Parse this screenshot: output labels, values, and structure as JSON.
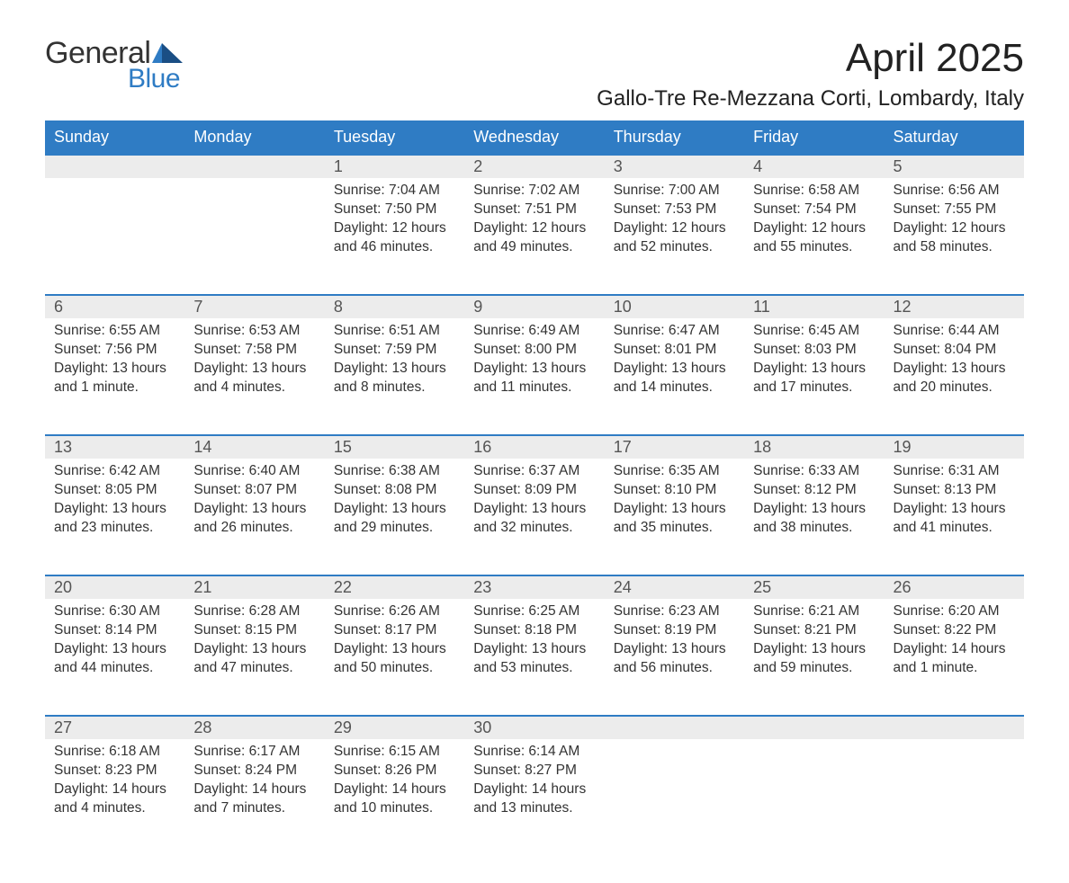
{
  "logo": {
    "general": "General",
    "blue": "Blue"
  },
  "title": "April 2025",
  "location": "Gallo-Tre Re-Mezzana Corti, Lombardy, Italy",
  "colors": {
    "header_bg": "#2f7cc4",
    "header_fg": "#ffffff",
    "daynum_bg": "#ececec",
    "border_top": "#2f7cc4",
    "text": "#333333",
    "logo_blue": "#2f7cc4"
  },
  "days_of_week": [
    "Sunday",
    "Monday",
    "Tuesday",
    "Wednesday",
    "Thursday",
    "Friday",
    "Saturday"
  ],
  "weeks": [
    [
      null,
      null,
      {
        "n": "1",
        "sr": "Sunrise: 7:04 AM",
        "ss": "Sunset: 7:50 PM",
        "dl1": "Daylight: 12 hours",
        "dl2": "and 46 minutes."
      },
      {
        "n": "2",
        "sr": "Sunrise: 7:02 AM",
        "ss": "Sunset: 7:51 PM",
        "dl1": "Daylight: 12 hours",
        "dl2": "and 49 minutes."
      },
      {
        "n": "3",
        "sr": "Sunrise: 7:00 AM",
        "ss": "Sunset: 7:53 PM",
        "dl1": "Daylight: 12 hours",
        "dl2": "and 52 minutes."
      },
      {
        "n": "4",
        "sr": "Sunrise: 6:58 AM",
        "ss": "Sunset: 7:54 PM",
        "dl1": "Daylight: 12 hours",
        "dl2": "and 55 minutes."
      },
      {
        "n": "5",
        "sr": "Sunrise: 6:56 AM",
        "ss": "Sunset: 7:55 PM",
        "dl1": "Daylight: 12 hours",
        "dl2": "and 58 minutes."
      }
    ],
    [
      {
        "n": "6",
        "sr": "Sunrise: 6:55 AM",
        "ss": "Sunset: 7:56 PM",
        "dl1": "Daylight: 13 hours",
        "dl2": "and 1 minute."
      },
      {
        "n": "7",
        "sr": "Sunrise: 6:53 AM",
        "ss": "Sunset: 7:58 PM",
        "dl1": "Daylight: 13 hours",
        "dl2": "and 4 minutes."
      },
      {
        "n": "8",
        "sr": "Sunrise: 6:51 AM",
        "ss": "Sunset: 7:59 PM",
        "dl1": "Daylight: 13 hours",
        "dl2": "and 8 minutes."
      },
      {
        "n": "9",
        "sr": "Sunrise: 6:49 AM",
        "ss": "Sunset: 8:00 PM",
        "dl1": "Daylight: 13 hours",
        "dl2": "and 11 minutes."
      },
      {
        "n": "10",
        "sr": "Sunrise: 6:47 AM",
        "ss": "Sunset: 8:01 PM",
        "dl1": "Daylight: 13 hours",
        "dl2": "and 14 minutes."
      },
      {
        "n": "11",
        "sr": "Sunrise: 6:45 AM",
        "ss": "Sunset: 8:03 PM",
        "dl1": "Daylight: 13 hours",
        "dl2": "and 17 minutes."
      },
      {
        "n": "12",
        "sr": "Sunrise: 6:44 AM",
        "ss": "Sunset: 8:04 PM",
        "dl1": "Daylight: 13 hours",
        "dl2": "and 20 minutes."
      }
    ],
    [
      {
        "n": "13",
        "sr": "Sunrise: 6:42 AM",
        "ss": "Sunset: 8:05 PM",
        "dl1": "Daylight: 13 hours",
        "dl2": "and 23 minutes."
      },
      {
        "n": "14",
        "sr": "Sunrise: 6:40 AM",
        "ss": "Sunset: 8:07 PM",
        "dl1": "Daylight: 13 hours",
        "dl2": "and 26 minutes."
      },
      {
        "n": "15",
        "sr": "Sunrise: 6:38 AM",
        "ss": "Sunset: 8:08 PM",
        "dl1": "Daylight: 13 hours",
        "dl2": "and 29 minutes."
      },
      {
        "n": "16",
        "sr": "Sunrise: 6:37 AM",
        "ss": "Sunset: 8:09 PM",
        "dl1": "Daylight: 13 hours",
        "dl2": "and 32 minutes."
      },
      {
        "n": "17",
        "sr": "Sunrise: 6:35 AM",
        "ss": "Sunset: 8:10 PM",
        "dl1": "Daylight: 13 hours",
        "dl2": "and 35 minutes."
      },
      {
        "n": "18",
        "sr": "Sunrise: 6:33 AM",
        "ss": "Sunset: 8:12 PM",
        "dl1": "Daylight: 13 hours",
        "dl2": "and 38 minutes."
      },
      {
        "n": "19",
        "sr": "Sunrise: 6:31 AM",
        "ss": "Sunset: 8:13 PM",
        "dl1": "Daylight: 13 hours",
        "dl2": "and 41 minutes."
      }
    ],
    [
      {
        "n": "20",
        "sr": "Sunrise: 6:30 AM",
        "ss": "Sunset: 8:14 PM",
        "dl1": "Daylight: 13 hours",
        "dl2": "and 44 minutes."
      },
      {
        "n": "21",
        "sr": "Sunrise: 6:28 AM",
        "ss": "Sunset: 8:15 PM",
        "dl1": "Daylight: 13 hours",
        "dl2": "and 47 minutes."
      },
      {
        "n": "22",
        "sr": "Sunrise: 6:26 AM",
        "ss": "Sunset: 8:17 PM",
        "dl1": "Daylight: 13 hours",
        "dl2": "and 50 minutes."
      },
      {
        "n": "23",
        "sr": "Sunrise: 6:25 AM",
        "ss": "Sunset: 8:18 PM",
        "dl1": "Daylight: 13 hours",
        "dl2": "and 53 minutes."
      },
      {
        "n": "24",
        "sr": "Sunrise: 6:23 AM",
        "ss": "Sunset: 8:19 PM",
        "dl1": "Daylight: 13 hours",
        "dl2": "and 56 minutes."
      },
      {
        "n": "25",
        "sr": "Sunrise: 6:21 AM",
        "ss": "Sunset: 8:21 PM",
        "dl1": "Daylight: 13 hours",
        "dl2": "and 59 minutes."
      },
      {
        "n": "26",
        "sr": "Sunrise: 6:20 AM",
        "ss": "Sunset: 8:22 PM",
        "dl1": "Daylight: 14 hours",
        "dl2": "and 1 minute."
      }
    ],
    [
      {
        "n": "27",
        "sr": "Sunrise: 6:18 AM",
        "ss": "Sunset: 8:23 PM",
        "dl1": "Daylight: 14 hours",
        "dl2": "and 4 minutes."
      },
      {
        "n": "28",
        "sr": "Sunrise: 6:17 AM",
        "ss": "Sunset: 8:24 PM",
        "dl1": "Daylight: 14 hours",
        "dl2": "and 7 minutes."
      },
      {
        "n": "29",
        "sr": "Sunrise: 6:15 AM",
        "ss": "Sunset: 8:26 PM",
        "dl1": "Daylight: 14 hours",
        "dl2": "and 10 minutes."
      },
      {
        "n": "30",
        "sr": "Sunrise: 6:14 AM",
        "ss": "Sunset: 8:27 PM",
        "dl1": "Daylight: 14 hours",
        "dl2": "and 13 minutes."
      },
      null,
      null,
      null
    ]
  ]
}
